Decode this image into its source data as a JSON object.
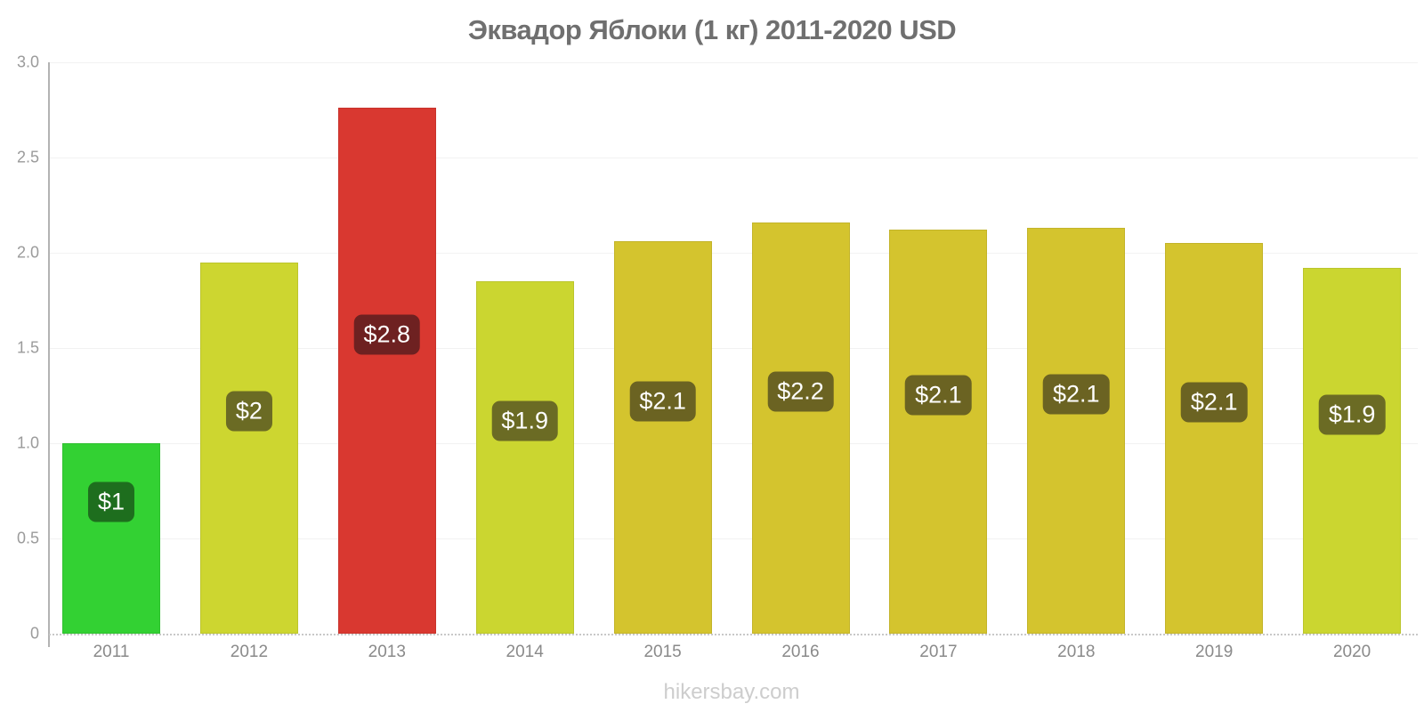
{
  "page": {
    "title": "Эквадор Яблоки (1 кг) 2011-2020 USD",
    "footer": "hikersbay.com"
  },
  "chart_data": {
    "type": "bar",
    "title": "Эквадор Яблоки (1 кг) 2011-2020 USD",
    "currency": "USD",
    "categories": [
      "2011",
      "2012",
      "2013",
      "2014",
      "2015",
      "2016",
      "2017",
      "2018",
      "2019",
      "2020"
    ],
    "values": [
      1.0,
      1.95,
      2.76,
      1.85,
      2.06,
      2.16,
      2.12,
      2.13,
      2.05,
      1.92
    ],
    "bar_labels": [
      "$1",
      "$2",
      "$2.8",
      "$1.9",
      "$2.1",
      "$2.2",
      "$2.1",
      "$2.1",
      "$2.1",
      "$1.9"
    ],
    "bar_colors": [
      "#33d133",
      "#cdd630",
      "#d93830",
      "#cbd630",
      "#d4c42e",
      "#d4c42e",
      "#d4c42e",
      "#d4c42e",
      "#d4c42e",
      "#cbd630"
    ],
    "badge_colors": [
      "#1e6e1e",
      "#6b6b24",
      "#6e2121",
      "#6b6b24",
      "#6b6322",
      "#6b6322",
      "#6b6322",
      "#6b6322",
      "#6b6322",
      "#6b6b24"
    ],
    "xlabel": "",
    "ylabel": "",
    "ylim": [
      0,
      3
    ],
    "ytick_labels": [
      "3.0",
      "2.5",
      "2.0",
      "1.5",
      "1.0",
      "0.5",
      "0"
    ],
    "ytick_values": [
      3.0,
      2.5,
      2.0,
      1.5,
      1.0,
      0.5,
      0
    ],
    "grid": "horizontal",
    "legend": "none"
  }
}
